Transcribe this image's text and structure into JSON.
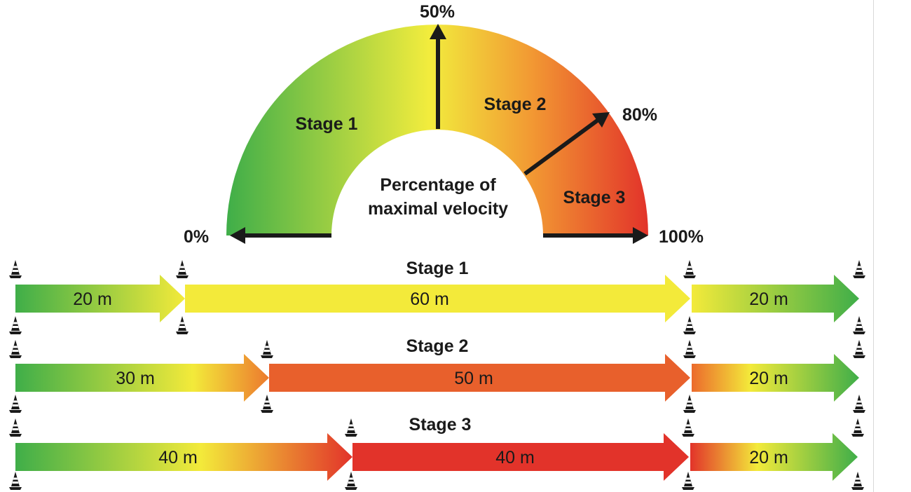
{
  "gauge": {
    "title_line1": "Percentage of",
    "title_line2": "maximal velocity",
    "labels": {
      "p0": "0%",
      "p50": "50%",
      "p80": "80%",
      "p100": "100%"
    },
    "stage_labels": [
      "Stage 1",
      "Stage 2",
      "Stage 3"
    ]
  },
  "rows": [
    {
      "title": "Stage 1",
      "segments": [
        {
          "label": "20 m",
          "meters": 20
        },
        {
          "label": "60 m",
          "meters": 60
        },
        {
          "label": "20 m",
          "meters": 20
        }
      ]
    },
    {
      "title": "Stage 2",
      "segments": [
        {
          "label": "30 m",
          "meters": 30
        },
        {
          "label": "50 m",
          "meters": 50
        },
        {
          "label": "20 m",
          "meters": 20
        }
      ]
    },
    {
      "title": "Stage 3",
      "segments": [
        {
          "label": "40 m",
          "meters": 40
        },
        {
          "label": "40 m",
          "meters": 40
        },
        {
          "label": "20 m",
          "meters": 20
        }
      ]
    }
  ],
  "colors": {
    "green": "#3fae49",
    "yellow": "#f3ea3a",
    "orange": "#e8602c",
    "red": "#e2332a",
    "text": "#1a1a1a",
    "cone": "#1a1a1a"
  }
}
